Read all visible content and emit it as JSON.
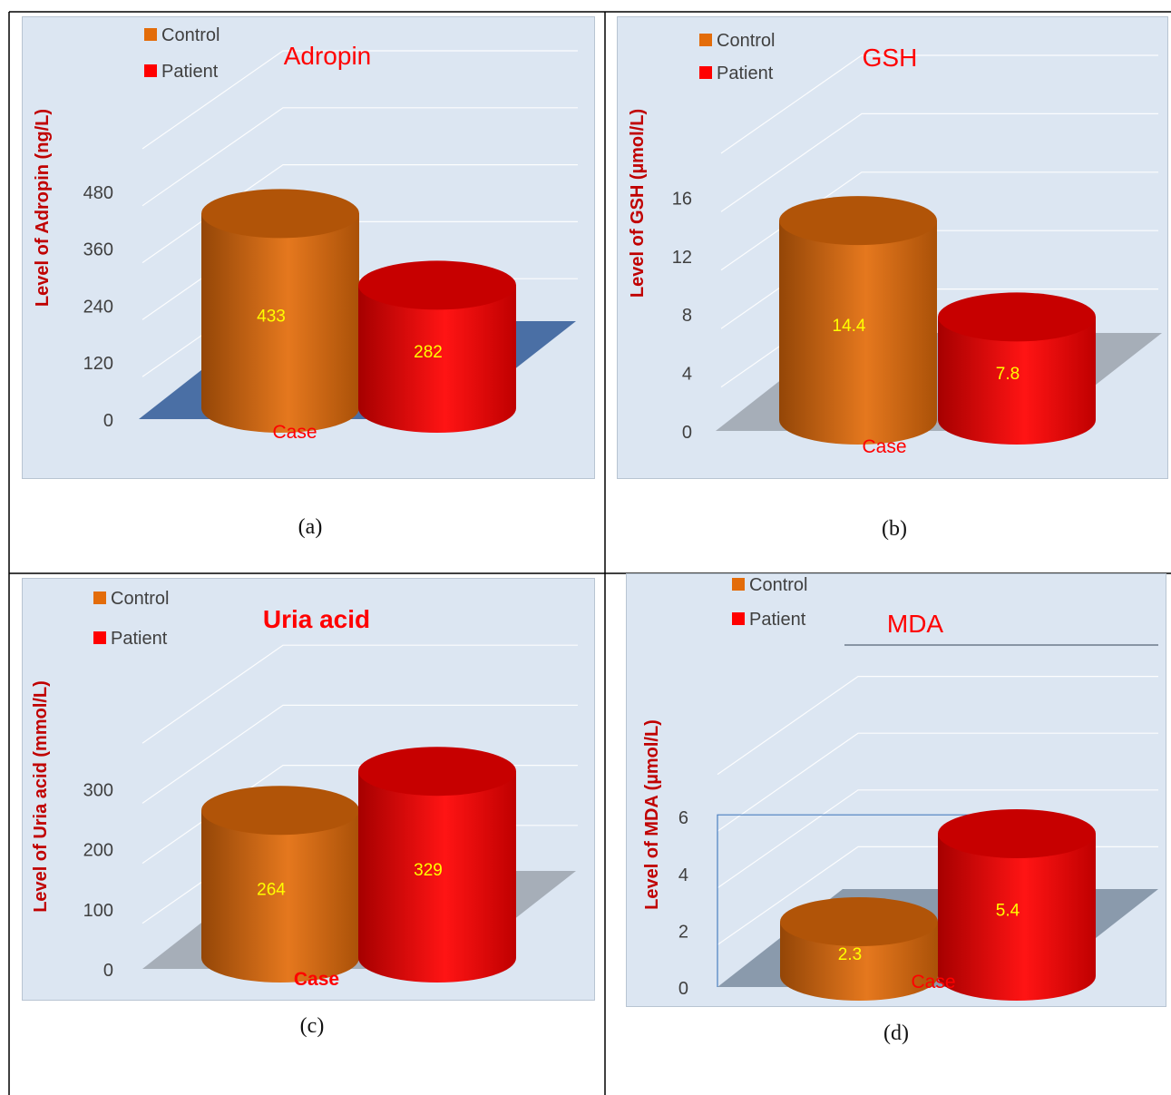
{
  "chart_data": [
    {
      "type": "bar",
      "title": "Adropin",
      "categories": [
        "Case"
      ],
      "series": [
        {
          "name": "Control",
          "values": [
            433
          ]
        },
        {
          "name": "Patient",
          "values": [
            282
          ]
        }
      ],
      "data_labels": [
        "433",
        "282"
      ],
      "xlabel": "Case",
      "ylabel": "Level of Adropin (ng/L)",
      "yticks": [
        "0",
        "120",
        "240",
        "360",
        "480"
      ],
      "ylim": [
        0,
        600
      ],
      "grid": true,
      "legend": "top-left",
      "caption": "(a)",
      "colors": {
        "control": "#e36c0a",
        "patient": "#ff0000",
        "floor": "#4a6fa5"
      }
    },
    {
      "type": "bar",
      "title": "GSH",
      "categories": [
        "Case"
      ],
      "series": [
        {
          "name": "Control",
          "values": [
            14.4
          ]
        },
        {
          "name": "Patient",
          "values": [
            7.8
          ]
        }
      ],
      "data_labels": [
        "14.4",
        "7.8"
      ],
      "xlabel": "Case",
      "ylabel": "Level of GSH (µmol/L)",
      "yticks": [
        "0",
        "4",
        "8",
        "12",
        "16"
      ],
      "ylim": [
        0,
        20
      ],
      "grid": true,
      "legend": "top-left",
      "caption": "(b)",
      "colors": {
        "control": "#e36c0a",
        "patient": "#ff0000",
        "floor": "#a6aeb8"
      }
    },
    {
      "type": "bar",
      "title": "Uria acid",
      "categories": [
        "Case"
      ],
      "series": [
        {
          "name": "Control",
          "values": [
            264
          ]
        },
        {
          "name": "Patient",
          "values": [
            329
          ]
        }
      ],
      "data_labels": [
        "264",
        "329"
      ],
      "xlabel": "Case",
      "ylabel": "Level of Uria acid (mmol/L)",
      "yticks": [
        "0",
        "100",
        "200",
        "300"
      ],
      "ylim": [
        0,
        400
      ],
      "grid": true,
      "legend": "top-left",
      "caption": "(c)",
      "colors": {
        "control": "#e36c0a",
        "patient": "#ff0000",
        "floor": "#a6aeb8"
      }
    },
    {
      "type": "bar",
      "title": "MDA",
      "categories": [
        "Case"
      ],
      "series": [
        {
          "name": "Control",
          "values": [
            2.3
          ]
        },
        {
          "name": "Patient",
          "values": [
            5.4
          ]
        }
      ],
      "data_labels": [
        "2.3",
        "5.4"
      ],
      "xlabel": "Case",
      "ylabel": "Level of MDA (µmol/L)",
      "yticks": [
        "0",
        "2",
        "4",
        "6"
      ],
      "ylim": [
        0,
        8
      ],
      "grid": true,
      "legend": "top-left",
      "caption": "(d)",
      "colors": {
        "control": "#e36c0a",
        "patient": "#ff0000",
        "floor": "#8a9aac"
      }
    }
  ]
}
